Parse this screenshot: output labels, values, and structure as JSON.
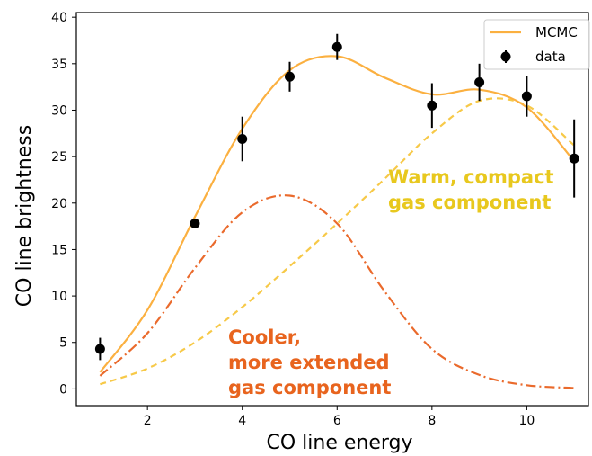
{
  "chart_data": {
    "type": "line",
    "xlabel": "CO line energy",
    "ylabel": "CO line brightness",
    "xlim": [
      0.5,
      11.3
    ],
    "ylim": [
      -1.8,
      40.5
    ],
    "xticks": [
      2,
      4,
      6,
      8,
      10
    ],
    "yticks": [
      0,
      5,
      10,
      15,
      20,
      25,
      30,
      35,
      40
    ],
    "grid": false,
    "legend": {
      "position": "top-right",
      "entries": [
        "MCMC",
        "data"
      ]
    },
    "series": [
      {
        "name": "MCMC",
        "style": "solid",
        "color": "#fbb040",
        "x": [
          1,
          2,
          3,
          4,
          5,
          6,
          7,
          8,
          9,
          10,
          11
        ],
        "y": [
          1.8,
          8.5,
          18.5,
          28.0,
          34.3,
          35.8,
          33.5,
          31.7,
          32.2,
          30.3,
          24.5
        ]
      },
      {
        "name": "data",
        "style": "errorbar",
        "color": "#000000",
        "x": [
          1,
          3,
          4,
          5,
          6,
          8,
          9,
          10,
          11
        ],
        "y": [
          4.3,
          17.8,
          26.9,
          33.6,
          36.8,
          30.5,
          33.0,
          31.5,
          24.8
        ],
        "yerr": [
          1.2,
          0.2,
          2.4,
          1.6,
          1.4,
          2.4,
          2.0,
          2.2,
          4.2
        ]
      },
      {
        "component": "cool",
        "style": "dashdot",
        "color": "#ea6a2c",
        "x": [
          1,
          2,
          3,
          4,
          5,
          6,
          7,
          8,
          9,
          10,
          11
        ],
        "y": [
          1.4,
          6.0,
          13.0,
          19.0,
          20.8,
          17.8,
          10.5,
          4.3,
          1.5,
          0.4,
          0.1
        ]
      },
      {
        "component": "warm",
        "style": "dashed",
        "color": "#f7c948",
        "x": [
          1,
          2,
          3,
          4,
          5,
          6,
          7,
          8,
          9,
          10,
          11
        ],
        "y": [
          0.5,
          2.2,
          5.0,
          8.8,
          13.2,
          17.8,
          22.6,
          27.5,
          31.0,
          30.5,
          26.2
        ]
      }
    ],
    "annotations": [
      {
        "id": "warm",
        "lines": [
          "Warm, compact",
          "gas component"
        ],
        "color": "#e8c81e"
      },
      {
        "id": "cool",
        "lines": [
          "Cooler,",
          "more extended",
          "gas component"
        ],
        "color": "#e8641e"
      }
    ]
  }
}
